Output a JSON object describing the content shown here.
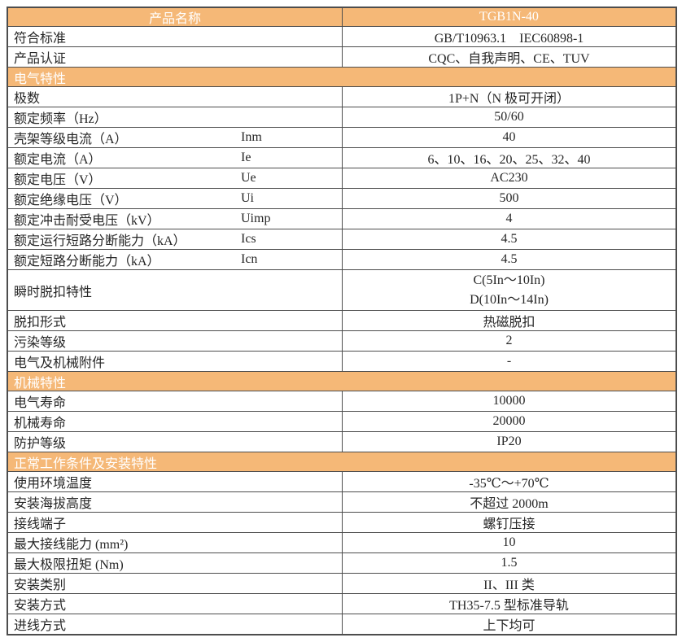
{
  "colors": {
    "accent_orange": "#F5B877",
    "border": "#4d4d4d",
    "text": "#262626",
    "header_text": "#ffffff"
  },
  "table": {
    "header": {
      "left": "产品名称",
      "right": "TGB1N-40"
    },
    "rows": [
      {
        "type": "data",
        "label": "符合标准",
        "symbol": "",
        "value": "GB/T10963.1　IEC60898-1"
      },
      {
        "type": "data",
        "label": "产品认证",
        "symbol": "",
        "value": "CQC、自我声明、CE、TUV"
      },
      {
        "type": "section",
        "label": "电气特性"
      },
      {
        "type": "data",
        "label": "极数",
        "symbol": "",
        "value": "1P+N（N 极可开闭）"
      },
      {
        "type": "data",
        "label": "额定频率（Hz）",
        "symbol": "",
        "value": "50/60"
      },
      {
        "type": "data",
        "label": "壳架等级电流（A）",
        "symbol": "Inm",
        "value": "40"
      },
      {
        "type": "data",
        "label": "额定电流（A）",
        "symbol": "Ie",
        "value": "6、10、16、20、25、32、40"
      },
      {
        "type": "data",
        "label": "额定电压（V）",
        "symbol": "Ue",
        "value": "AC230"
      },
      {
        "type": "data",
        "label": "额定绝缘电压（V）",
        "symbol": "Ui",
        "value": "500"
      },
      {
        "type": "data",
        "label": "额定冲击耐受电压（kV）",
        "symbol": "Uimp",
        "value": "4"
      },
      {
        "type": "data",
        "label": "额定运行短路分断能力（kA）",
        "symbol": "Ics",
        "value": "4.5"
      },
      {
        "type": "data",
        "label": "额定短路分断能力（kA）",
        "symbol": "Icn",
        "value": "4.5"
      },
      {
        "type": "tall",
        "label": "瞬时脱扣特性",
        "value_lines": [
          "C(5In～10In)",
          "D(10In～14In)"
        ]
      },
      {
        "type": "data",
        "label": "脱扣形式",
        "symbol": "",
        "value": "热磁脱扣"
      },
      {
        "type": "data",
        "label": "污染等级",
        "symbol": "",
        "value": "2"
      },
      {
        "type": "data",
        "label": "电气及机械附件",
        "symbol": "",
        "value": "-"
      },
      {
        "type": "section",
        "label": "机械特性"
      },
      {
        "type": "data",
        "label": "电气寿命",
        "symbol": "",
        "value": "10000"
      },
      {
        "type": "data",
        "label": "机械寿命",
        "symbol": "",
        "value": "20000"
      },
      {
        "type": "data",
        "label": "防护等级",
        "symbol": "",
        "value": "IP20"
      },
      {
        "type": "section",
        "label": "正常工作条件及安装特性"
      },
      {
        "type": "data",
        "label": "使用环境温度",
        "symbol": "",
        "value": "-35℃～+70℃"
      },
      {
        "type": "data",
        "label": "安装海拔高度",
        "symbol": "",
        "value": "不超过 2000m"
      },
      {
        "type": "data",
        "label": "接线端子",
        "symbol": "",
        "value": "螺钉压接"
      },
      {
        "type": "data",
        "label": "最大接线能力 (mm²)",
        "symbol": "",
        "value": "10"
      },
      {
        "type": "data",
        "label": "最大极限扭矩 (Nm)",
        "symbol": "",
        "value": "1.5"
      },
      {
        "type": "data",
        "label": "安装类别",
        "symbol": "",
        "value": "II、III 类"
      },
      {
        "type": "data",
        "label": "安装方式",
        "symbol": "",
        "value": "TH35-7.5 型标准导轨"
      },
      {
        "type": "data",
        "label": "进线方式",
        "symbol": "",
        "value": "上下均可"
      }
    ]
  }
}
